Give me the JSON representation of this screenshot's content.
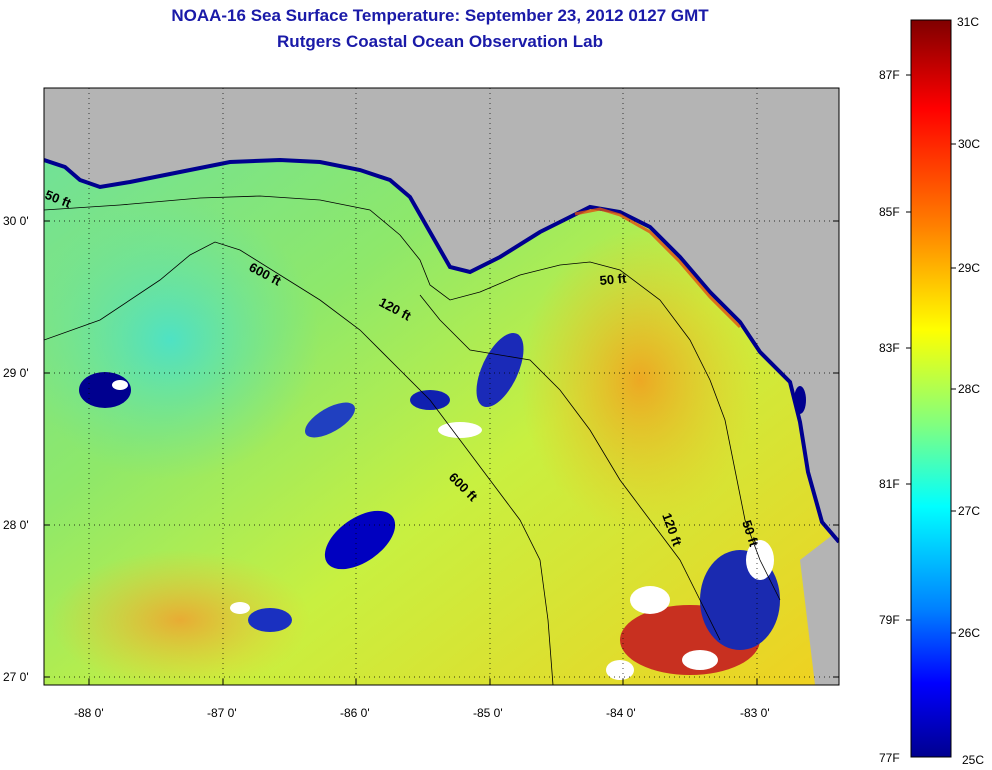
{
  "title": {
    "line1": "NOAA-16 Sea Surface Temperature:  September 23, 2012 0127 GMT",
    "line2": "Rutgers Coastal Ocean Observation Lab"
  },
  "map": {
    "lon_ticks": [
      "-88 0'",
      "-87 0'",
      "-86 0'",
      "-85 0'",
      "-84 0'",
      "-83 0'"
    ],
    "lat_ticks": [
      "30 0'",
      "29 0'",
      "28 0'",
      "27 0'"
    ],
    "contours": [
      "50 ft",
      "600 ft",
      "120 ft",
      "50 ft",
      "600 ft",
      "120 ft",
      "50 ft"
    ]
  },
  "colorbar": {
    "celsius": [
      "31C",
      "30C",
      "29C",
      "28C",
      "27C",
      "26C",
      "25C"
    ],
    "fahrenheit": [
      "87F",
      "85F",
      "83F",
      "81F",
      "79F",
      "77F"
    ],
    "colors": [
      "#7f0000",
      "#ff0000",
      "#ff8000",
      "#ffff00",
      "#80ff80",
      "#00ffff",
      "#0080ff",
      "#0000ff",
      "#00008f"
    ]
  }
}
